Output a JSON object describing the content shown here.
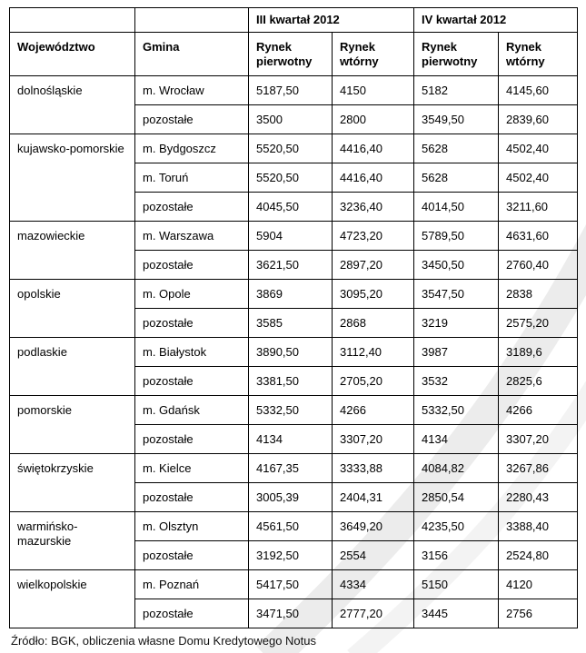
{
  "page": {
    "background": "#ffffff",
    "table_border_color": "#000000",
    "watermark_color_outer": "#ececec",
    "watermark_color_inner": "#f3f3f3"
  },
  "chart_data": {
    "type": "table",
    "title": "",
    "column_groups": [
      "",
      "III kwartał 2012",
      "IV kwartał 2012"
    ],
    "columns": [
      "Województwo",
      "Gmina",
      "Rynek pierwotny",
      "Rynek wtórny",
      "Rynek pierwotny",
      "Rynek wtórny"
    ],
    "groups": [
      {
        "wojewodztwo": "dolnośląskie",
        "rows": [
          {
            "gmina": "m. Wrocław",
            "values": [
              "5187,50",
              "4150",
              "5182",
              "4145,60"
            ]
          },
          {
            "gmina": "pozostałe",
            "values": [
              "3500",
              "2800",
              "3549,50",
              "2839,60"
            ]
          }
        ]
      },
      {
        "wojewodztwo": "kujawsko-pomorskie",
        "rows": [
          {
            "gmina": "m. Bydgoszcz",
            "values": [
              "5520,50",
              "4416,40",
              "5628",
              "4502,40"
            ]
          },
          {
            "gmina": "m. Toruń",
            "values": [
              "5520,50",
              "4416,40",
              "5628",
              "4502,40"
            ]
          },
          {
            "gmina": "pozostałe",
            "values": [
              "4045,50",
              "3236,40",
              "4014,50",
              "3211,60"
            ]
          }
        ]
      },
      {
        "wojewodztwo": "mazowieckie",
        "rows": [
          {
            "gmina": "m. Warszawa",
            "values": [
              "5904",
              "4723,20",
              "5789,50",
              "4631,60"
            ]
          },
          {
            "gmina": "pozostałe",
            "values": [
              "3621,50",
              "2897,20",
              "3450,50",
              "2760,40"
            ]
          }
        ]
      },
      {
        "wojewodztwo": "opolskie",
        "rows": [
          {
            "gmina": "m. Opole",
            "values": [
              "3869",
              "3095,20",
              "3547,50",
              "2838"
            ]
          },
          {
            "gmina": "pozostałe",
            "values": [
              "3585",
              "2868",
              "3219",
              "2575,20"
            ]
          }
        ]
      },
      {
        "wojewodztwo": "podlaskie",
        "rows": [
          {
            "gmina": "m. Białystok",
            "values": [
              "3890,50",
              "3112,40",
              "3987",
              "3189,6"
            ]
          },
          {
            "gmina": "pozostałe",
            "values": [
              "3381,50",
              "2705,20",
              "3532",
              "2825,6"
            ]
          }
        ]
      },
      {
        "wojewodztwo": "pomorskie",
        "rows": [
          {
            "gmina": "m. Gdańsk",
            "values": [
              "5332,50",
              "4266",
              "5332,50",
              "4266"
            ]
          },
          {
            "gmina": "pozostałe",
            "values": [
              "4134",
              "3307,20",
              "4134",
              "3307,20"
            ]
          }
        ]
      },
      {
        "wojewodztwo": "świętokrzyskie",
        "rows": [
          {
            "gmina": "m. Kielce",
            "values": [
              "4167,35",
              "3333,88",
              "4084,82",
              "3267,86"
            ]
          },
          {
            "gmina": "pozostałe",
            "values": [
              "3005,39",
              "2404,31",
              "2850,54",
              "2280,43"
            ]
          }
        ]
      },
      {
        "wojewodztwo": "warmińsko-mazurskie",
        "rows": [
          {
            "gmina": "m. Olsztyn",
            "values": [
              "4561,50",
              "3649,20",
              "4235,50",
              "3388,40"
            ]
          },
          {
            "gmina": "pozostałe",
            "values": [
              "3192,50",
              "2554",
              "3156",
              "2524,80"
            ]
          }
        ]
      },
      {
        "wojewodztwo": "wielkopolskie",
        "rows": [
          {
            "gmina": "m. Poznań",
            "values": [
              "5417,50",
              "4334",
              "5150",
              "4120"
            ]
          },
          {
            "gmina": "pozostałe",
            "values": [
              "3471,50",
              "2777,20",
              "3445",
              "2756"
            ]
          }
        ]
      }
    ],
    "source_note": "Źródło: BGK, obliczenia własne Domu Kredytowego Notus"
  }
}
